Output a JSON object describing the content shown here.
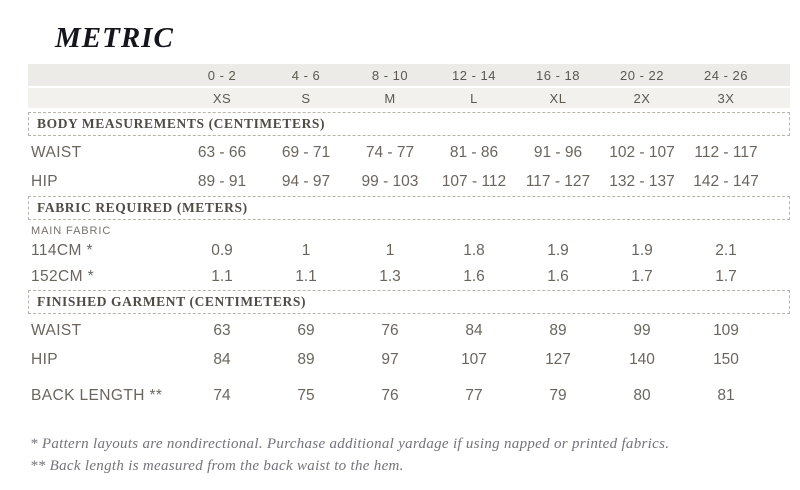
{
  "page": {
    "title": "METRIC",
    "footnotes": [
      "* Pattern layouts are nondirectional. Purchase additional yardage if using napped or printed fabrics.",
      "** Back length is measured from the back waist to the hem."
    ]
  },
  "size_header": {
    "numeric_sizes": [
      "0 - 2",
      "4 - 6",
      "8 - 10",
      "12 - 14",
      "16 - 18",
      "20 - 22",
      "24 - 26"
    ],
    "letter_sizes": [
      "XS",
      "S",
      "M",
      "L",
      "XL",
      "2X",
      "3X"
    ]
  },
  "sections": [
    {
      "heading": "BODY MEASUREMENTS (CENTIMETERS)",
      "rows": [
        {
          "label": "WAIST",
          "values": [
            "63 - 66",
            "69 - 71",
            "74 - 77",
            "81 - 86",
            "91 - 96",
            "102 - 107",
            "112 - 117"
          ]
        },
        {
          "label": "HIP",
          "values": [
            "89 - 91",
            "94 - 97",
            "99 - 103",
            "107 - 112",
            "117 - 127",
            "132 - 137",
            "142 - 147"
          ]
        }
      ]
    },
    {
      "heading": "FABRIC REQUIRED (METERS)",
      "subheading": "MAIN FABRIC",
      "rows": [
        {
          "label": "114CM *",
          "values": [
            "0.9",
            "1",
            "1",
            "1.8",
            "1.9",
            "1.9",
            "2.1"
          ]
        },
        {
          "label": "152CM *",
          "values": [
            "1.1",
            "1.1",
            "1.3",
            "1.6",
            "1.6",
            "1.7",
            "1.7"
          ]
        }
      ]
    },
    {
      "heading": "FINISHED GARMENT (CENTIMETERS)",
      "rows": [
        {
          "label": "WAIST",
          "values": [
            "63",
            "69",
            "76",
            "84",
            "89",
            "99",
            "109"
          ]
        },
        {
          "label": "HIP",
          "values": [
            "84",
            "89",
            "97",
            "107",
            "127",
            "140",
            "150"
          ]
        },
        {
          "label": "BACK LENGTH **",
          "values": [
            "74",
            "75",
            "76",
            "77",
            "79",
            "80",
            "81"
          ]
        }
      ]
    }
  ],
  "colors": {
    "band_primary_bg": "#ECEBE7",
    "band_secondary_bg": "#F2F1ED",
    "dashed_border": "#B8B4AA",
    "title_text": "#15151D",
    "heading_text": "#4F4C46",
    "body_text": "#6B655E",
    "footnote_text": "#73737B"
  }
}
